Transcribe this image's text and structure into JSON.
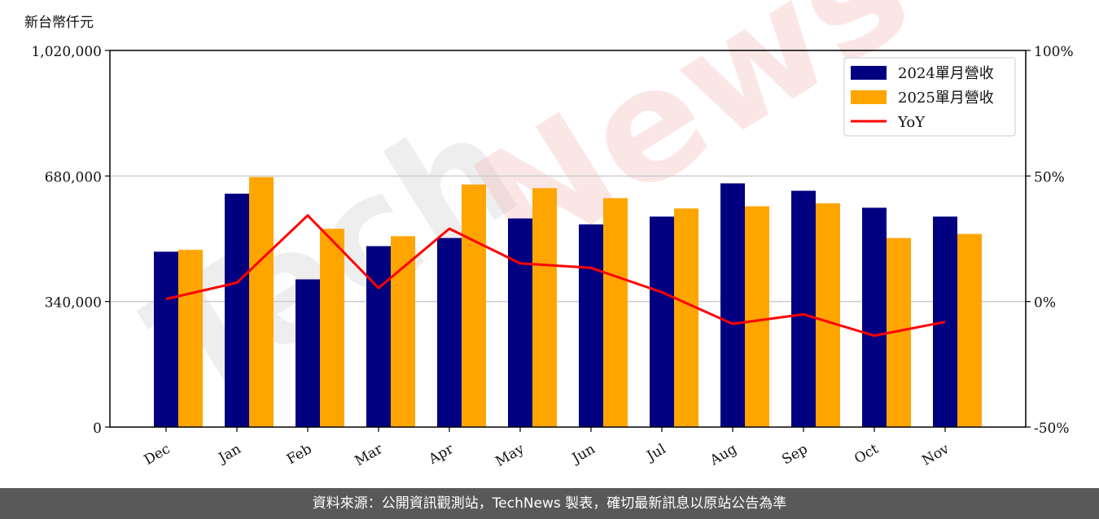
{
  "chart_data": {
    "type": "bar",
    "unit_label": "新台幣仟元",
    "categories": [
      "Dec",
      "Jan",
      "Feb",
      "Mar",
      "Apr",
      "May",
      "Jun",
      "Jul",
      "Aug",
      "Sep",
      "Oct",
      "Nov"
    ],
    "series": [
      {
        "name": "2024單月營收",
        "type": "bar",
        "color": "#000080",
        "values": [
          475000,
          632000,
          400000,
          490000,
          512000,
          565000,
          549000,
          570000,
          660000,
          640000,
          594000,
          570000
        ]
      },
      {
        "name": "2025單月營收",
        "type": "bar",
        "color": "#FFA500",
        "values": [
          480000,
          677000,
          537000,
          517000,
          657000,
          647000,
          620000,
          592000,
          598000,
          606000,
          512000,
          523000
        ]
      }
    ],
    "line_series": {
      "name": "YoY",
      "color": "#FF0000",
      "values": [
        1.0,
        7.5,
        34.3,
        5.4,
        29.0,
        15.2,
        13.4,
        3.7,
        -8.9,
        -5.1,
        -13.6,
        -8.1
      ]
    },
    "ylim_left": [
      0,
      1020000
    ],
    "yticks_left": [
      "0",
      "340,000",
      "680,000",
      "1,020,000"
    ],
    "ylim_right": [
      -50,
      100
    ],
    "yticks_right": [
      "-50%",
      "0%",
      "50%",
      "100%"
    ],
    "grid": "horizontal",
    "legend_position": "top-right",
    "watermark": "TechNews"
  },
  "footer": {
    "text": "資料來源：公開資訊觀測站，TechNews 製表，確切最新訊息以原站公告為準"
  }
}
